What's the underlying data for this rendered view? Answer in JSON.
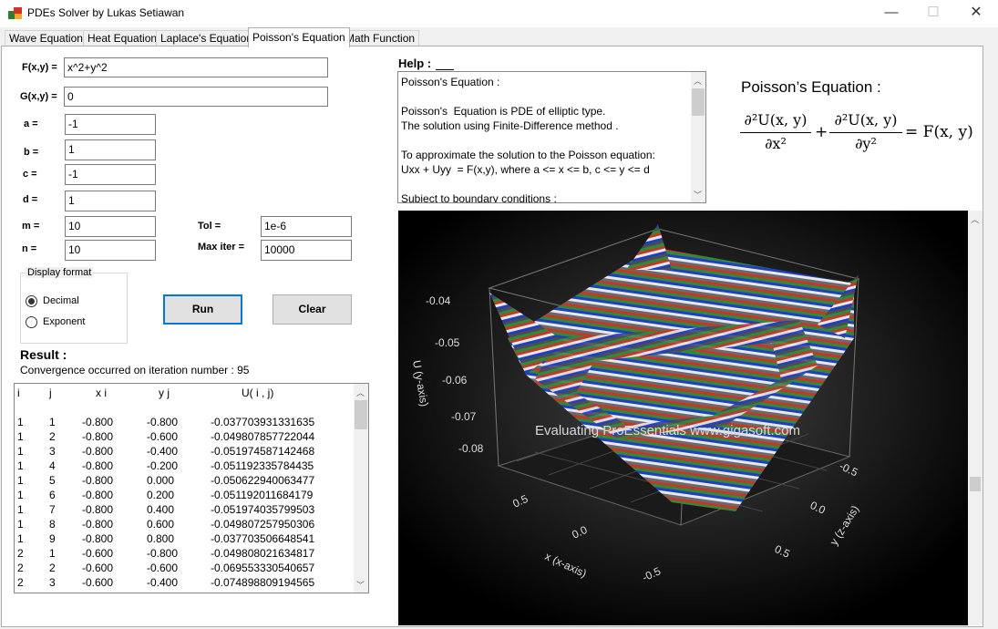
{
  "window": {
    "title": "PDEs Solver by Lukas Setiawan",
    "minimize": "—",
    "maximize": "☐",
    "close": "✕"
  },
  "tabs": [
    "Wave Equation",
    "Heat Equation",
    "Laplace's Equation",
    "Poisson's Equation",
    "Math Function"
  ],
  "form": {
    "f_label": "F(x,y) =",
    "f_value": "x^2+y^2",
    "g_label": "G(x,y) =",
    "g_value": "0",
    "a_label": "a =",
    "a_value": "-1",
    "b_label": "b =",
    "b_value": "1",
    "c_label": "c =",
    "c_value": "-1",
    "d_label": "d =",
    "d_value": "1",
    "m_label": "m =",
    "m_value": "10",
    "n_label": "n =",
    "n_value": "10",
    "tol_label": "Tol =",
    "tol_value": "1e-6",
    "maxiter_label": "Max iter =",
    "maxiter_value": "10000",
    "display_format_label": "Display format",
    "decimal_label": "Decimal",
    "exponent_label": "Exponent",
    "selected_format": "Decimal",
    "run_label": "Run",
    "clear_label": "Clear"
  },
  "result": {
    "heading": "Result :",
    "convergence": "Convergence occurred on iteration number : 95",
    "columns": [
      "i",
      "j",
      "x i",
      "y j",
      "U( i , j)"
    ],
    "rows": [
      [
        "1",
        "1",
        "-0.800",
        "-0.800",
        "-0.037703931331635"
      ],
      [
        "1",
        "2",
        "-0.800",
        "-0.600",
        "-0.049807857722044"
      ],
      [
        "1",
        "3",
        "-0.800",
        "-0.400",
        "-0.051974587142468"
      ],
      [
        "1",
        "4",
        "-0.800",
        "-0.200",
        "-0.051192335784435"
      ],
      [
        "1",
        "5",
        "-0.800",
        "0.000",
        "-0.050622940063477"
      ],
      [
        "1",
        "6",
        "-0.800",
        "0.200",
        "-0.051192011684179"
      ],
      [
        "1",
        "7",
        "-0.800",
        "0.400",
        "-0.051974035799503"
      ],
      [
        "1",
        "8",
        "-0.800",
        "0.600",
        "-0.049807257950306"
      ],
      [
        "1",
        "9",
        "-0.800",
        "0.800",
        "-0.037703506648541"
      ],
      [
        "2",
        "1",
        "-0.600",
        "-0.800",
        "-0.049808021634817"
      ],
      [
        "2",
        "2",
        "-0.600",
        "-0.600",
        "-0.069553330540657"
      ],
      [
        "2",
        "3",
        "-0.600",
        "-0.400",
        "-0.074898809194565"
      ]
    ]
  },
  "help": {
    "heading": "Help :",
    "text": "Poisson's Equation :\n\nPoisson's  Equation is PDE of elliptic type.\nThe solution using Finite-Difference method .\n\nTo approximate the solution to the Poisson equation:\nUxx + Uyy  = F(x,y), where a <= x <= b, c <= y <= d\n\nSubject to boundary conditions :"
  },
  "equation": {
    "title": "Poisson’s Equation :",
    "num1": "∂²U(x, y)",
    "den1": "∂x²",
    "plus": "+",
    "num2": "∂²U(x, y)",
    "den2": "∂y²",
    "rhs": "= F(x, y)"
  },
  "chart": {
    "watermark": "Evaluating ProEssentials www.gigasoft.com",
    "y_axis_label": "U (y-axis)",
    "x_axis_label": "x (x-axis)",
    "z_axis_label": "y (z-axis)",
    "y_ticks": [
      "-0.04",
      "-0.05",
      "-0.06",
      "-0.07",
      "-0.08"
    ],
    "x_ticks": [
      "0.5",
      "0.0",
      "-0.5"
    ],
    "z_ticks": [
      "-0.5",
      "0.0",
      "0.5"
    ]
  },
  "colors": {
    "accent": "#0078d7",
    "chart_bg": "#000000",
    "stripe_colors": [
      "#c0392b",
      "#2e8b3a",
      "#1f3fbf",
      "#e8e8e8",
      "#6a6a6a"
    ]
  }
}
